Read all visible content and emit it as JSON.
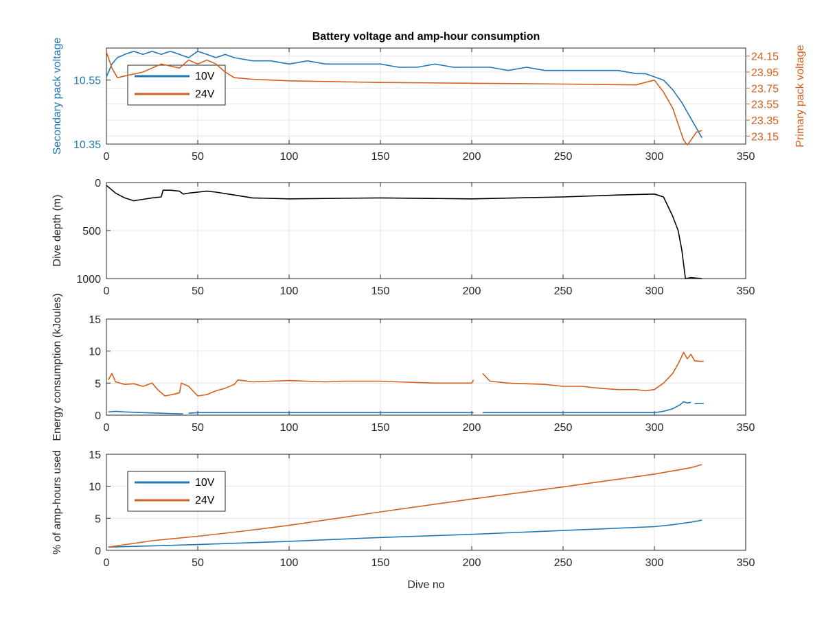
{
  "figure": {
    "title": "Battery voltage and amp-hour consumption",
    "xlabel": "Dive no",
    "colors": {
      "blue": "#1f77b4",
      "orange": "#d45f1c",
      "black": "#000000",
      "grid": "#e6e6e6",
      "axis": "#262626"
    }
  },
  "chart_data": [
    {
      "type": "line",
      "title": "Battery voltage and amp-hour consumption",
      "xlabel": "",
      "ylabel": "Secondary pack voltage",
      "ylabel_right": "Primary pack voltage",
      "xlim": [
        0,
        350
      ],
      "ylim": [
        10.35,
        10.65
      ],
      "ylim_right": [
        23.05,
        24.25
      ],
      "xticks": [
        0,
        50,
        100,
        150,
        200,
        250,
        300,
        350
      ],
      "xtick_labels": [
        "0",
        "50",
        "100",
        "150",
        "200",
        "250",
        "300",
        "350"
      ],
      "yticks": [
        10.35,
        10.55
      ],
      "ytick_labels": [
        "10.35",
        "10.55"
      ],
      "yticks_right": [
        23.15,
        23.35,
        23.55,
        23.75,
        23.95,
        24.15
      ],
      "ytick_labels_right": [
        "23.15",
        "23.35",
        "23.55",
        "23.75",
        "23.95",
        "24.15"
      ],
      "grid": true,
      "legend": {
        "placement": "top-left",
        "entries": [
          "10V",
          "24V"
        ]
      },
      "series": [
        {
          "name": "10V",
          "axis": "left",
          "color": "#1f77b4",
          "x": [
            0,
            3,
            6,
            10,
            15,
            20,
            25,
            30,
            35,
            40,
            45,
            50,
            55,
            60,
            65,
            70,
            80,
            90,
            100,
            110,
            120,
            130,
            140,
            150,
            160,
            170,
            180,
            190,
            200,
            210,
            220,
            230,
            240,
            250,
            260,
            270,
            280,
            290,
            295,
            300,
            305,
            310,
            315,
            320,
            323,
            326
          ],
          "y": [
            10.56,
            10.6,
            10.62,
            10.63,
            10.64,
            10.63,
            10.64,
            10.63,
            10.64,
            10.63,
            10.62,
            10.64,
            10.63,
            10.62,
            10.63,
            10.62,
            10.61,
            10.61,
            10.6,
            10.61,
            10.6,
            10.6,
            10.6,
            10.6,
            10.59,
            10.59,
            10.6,
            10.59,
            10.59,
            10.59,
            10.58,
            10.59,
            10.58,
            10.58,
            10.58,
            10.58,
            10.58,
            10.57,
            10.57,
            10.56,
            10.55,
            10.52,
            10.48,
            10.43,
            10.4,
            10.37
          ]
        },
        {
          "name": "24V",
          "axis": "right",
          "color": "#d45f1c",
          "x": [
            0,
            3,
            6,
            10,
            20,
            30,
            40,
            45,
            50,
            55,
            60,
            65,
            70,
            80,
            100,
            150,
            200,
            250,
            290,
            300,
            305,
            310,
            313,
            316,
            318,
            320,
            323,
            326
          ],
          "y": [
            24.2,
            24.0,
            23.88,
            23.9,
            23.95,
            24.05,
            24.0,
            24.1,
            24.05,
            24.1,
            24.05,
            23.95,
            23.88,
            23.86,
            23.84,
            23.82,
            23.81,
            23.8,
            23.79,
            23.85,
            23.7,
            23.5,
            23.3,
            23.1,
            23.04,
            23.1,
            23.2,
            23.22
          ]
        }
      ]
    },
    {
      "type": "line",
      "xlabel": "",
      "ylabel": "Dive depth (m)",
      "xlim": [
        0,
        350
      ],
      "ylim": [
        0,
        1000
      ],
      "y_reversed": true,
      "xticks": [
        0,
        50,
        100,
        150,
        200,
        250,
        300,
        350
      ],
      "xtick_labels": [
        "0",
        "50",
        "100",
        "150",
        "200",
        "250",
        "300",
        "350"
      ],
      "yticks": [
        0,
        500,
        1000
      ],
      "ytick_labels": [
        "0",
        "500",
        "1000"
      ],
      "grid": true,
      "series": [
        {
          "color": "#000000",
          "x": [
            0,
            5,
            10,
            15,
            20,
            25,
            30,
            31,
            35,
            40,
            42,
            45,
            50,
            55,
            60,
            70,
            80,
            100,
            150,
            200,
            250,
            280,
            300,
            305,
            310,
            313,
            315,
            317,
            320,
            326
          ],
          "y": [
            30,
            110,
            160,
            190,
            175,
            160,
            150,
            80,
            80,
            90,
            120,
            110,
            100,
            90,
            100,
            130,
            160,
            170,
            160,
            170,
            150,
            130,
            120,
            150,
            350,
            500,
            700,
            1000,
            990,
            1000
          ]
        }
      ]
    },
    {
      "type": "line",
      "xlabel": "",
      "ylabel": "Energy consumption (kJoules)",
      "xlim": [
        0,
        350
      ],
      "ylim": [
        0,
        15
      ],
      "xticks": [
        0,
        50,
        100,
        150,
        200,
        250,
        300,
        350
      ],
      "xtick_labels": [
        "0",
        "50",
        "100",
        "150",
        "200",
        "250",
        "300",
        "350"
      ],
      "yticks": [
        0,
        5,
        10,
        15
      ],
      "ytick_labels": [
        "0",
        "5",
        "10",
        "15"
      ],
      "grid": true,
      "series": [
        {
          "color": "#d45f1c",
          "x": [
            1,
            3,
            5,
            10,
            15,
            20,
            25,
            28,
            32,
            36,
            40,
            41,
            45,
            50,
            55,
            60,
            65,
            70,
            72,
            80,
            90,
            100,
            110,
            120,
            130,
            140,
            150,
            160,
            170,
            180,
            190,
            200,
            201,
            null,
            206,
            210,
            220,
            230,
            240,
            250,
            260,
            270,
            280,
            290,
            295,
            300,
            305,
            310,
            313,
            316,
            318,
            320,
            322,
            325,
            327
          ],
          "y": [
            5.5,
            6.5,
            5.2,
            4.8,
            4.9,
            4.5,
            5.0,
            4.0,
            3.0,
            3.2,
            3.5,
            5.0,
            4.5,
            3.0,
            3.2,
            3.8,
            4.2,
            4.8,
            5.5,
            5.2,
            5.3,
            5.4,
            5.3,
            5.2,
            5.3,
            5.3,
            5.3,
            5.2,
            5.1,
            5.0,
            5.0,
            5.0,
            5.5,
            null,
            6.5,
            5.3,
            5.0,
            4.9,
            4.8,
            4.5,
            4.5,
            4.2,
            4.0,
            4.0,
            3.8,
            4.0,
            5.0,
            6.5,
            8.0,
            9.8,
            8.8,
            9.5,
            8.5,
            8.4,
            8.4
          ]
        },
        {
          "color": "#1f77b4",
          "x": [
            1,
            5,
            10,
            20,
            30,
            40,
            42,
            null,
            45,
            50,
            100,
            150,
            200,
            201,
            null,
            206,
            250,
            300,
            305,
            310,
            314,
            316,
            318,
            320,
            null,
            322,
            327
          ],
          "y": [
            0.5,
            0.6,
            0.5,
            0.4,
            0.3,
            0.2,
            0.2,
            null,
            0.3,
            0.4,
            0.4,
            0.4,
            0.4,
            0.4,
            null,
            0.4,
            0.4,
            0.4,
            0.6,
            1.0,
            1.6,
            2.1,
            1.9,
            2.0,
            null,
            1.8,
            1.8
          ]
        }
      ]
    },
    {
      "type": "line",
      "xlabel": "Dive no",
      "ylabel": "% of amp-hours used",
      "xlim": [
        0,
        350
      ],
      "ylim": [
        0,
        15
      ],
      "xticks": [
        0,
        50,
        100,
        150,
        200,
        250,
        300,
        350
      ],
      "xtick_labels": [
        "0",
        "50",
        "100",
        "150",
        "200",
        "250",
        "300",
        "350"
      ],
      "yticks": [
        0,
        5,
        10,
        15
      ],
      "ytick_labels": [
        "0",
        "5",
        "10",
        "15"
      ],
      "grid": true,
      "legend": {
        "placement": "top-left",
        "entries": [
          "10V",
          "24V"
        ]
      },
      "series": [
        {
          "name": "10V",
          "color": "#1f77b4",
          "x": [
            1,
            50,
            100,
            150,
            200,
            250,
            300,
            310,
            320,
            326
          ],
          "y": [
            0.5,
            0.9,
            1.4,
            2.0,
            2.5,
            3.1,
            3.7,
            4.0,
            4.4,
            4.7
          ]
        },
        {
          "name": "24V",
          "color": "#d45f1c",
          "x": [
            1,
            25,
            50,
            75,
            100,
            150,
            200,
            250,
            300,
            310,
            320,
            326
          ],
          "y": [
            0.5,
            1.5,
            2.2,
            3.0,
            3.9,
            6.0,
            8.0,
            9.9,
            11.9,
            12.4,
            12.9,
            13.4
          ]
        }
      ]
    }
  ]
}
